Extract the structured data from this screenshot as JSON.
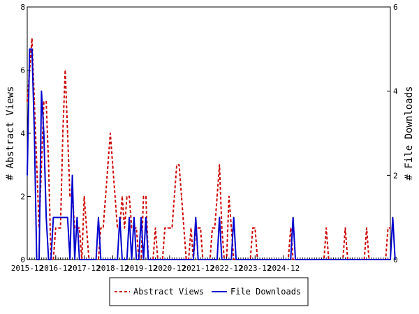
{
  "chart_data": {
    "type": "line",
    "title": "",
    "ylabel_left": "# Abstract Views",
    "ylabel_right": "# File Downloads",
    "ylim_left": [
      0,
      8
    ],
    "ylim_right": [
      0,
      6
    ],
    "yticks_left": [
      "0",
      "2",
      "4",
      "6",
      "8"
    ],
    "yticks_right": [
      "0",
      "2",
      "4",
      "6"
    ],
    "x_tick_labels": [
      "2015-12",
      "2016-12",
      "2017-12",
      "2018-12",
      "2019-12",
      "2020-12",
      "2021-12",
      "2022-12",
      "2023-12",
      "2024-12"
    ],
    "grid": false,
    "legend_position": "bottom",
    "series": [
      {
        "name": "Abstract Views",
        "axis": "left",
        "color": "#cc0000",
        "style": "dashed",
        "values": [
          5,
          6,
          7,
          5,
          3,
          1,
          3,
          5,
          5,
          3,
          0,
          0,
          1,
          1,
          1,
          4,
          6,
          4,
          2,
          2,
          1,
          1,
          1,
          0,
          2,
          1,
          0,
          0,
          0,
          0,
          0,
          1,
          1,
          2,
          3,
          4,
          3,
          2,
          1,
          1,
          2,
          1,
          2,
          2,
          1,
          1,
          1,
          0,
          0,
          2,
          2,
          0,
          0,
          0,
          1,
          0,
          0,
          0,
          1,
          1,
          1,
          1,
          2,
          3,
          3,
          2,
          1,
          0,
          0,
          1,
          0,
          1,
          1,
          1,
          0,
          0,
          0,
          0,
          1,
          1,
          2,
          3,
          1,
          0,
          0,
          2,
          1,
          0,
          0,
          0,
          0,
          0,
          0,
          0,
          0,
          1,
          1,
          0,
          0,
          0,
          0,
          0,
          0,
          0,
          0,
          0,
          0,
          0,
          0,
          0,
          0,
          1,
          0,
          0,
          0,
          0,
          0,
          0,
          0,
          0,
          0,
          0,
          0,
          0,
          0,
          0,
          1,
          0,
          0,
          0,
          0,
          0,
          0,
          0,
          1,
          0,
          0,
          0,
          0,
          0,
          0,
          0,
          0,
          1,
          0,
          0,
          0,
          0,
          0,
          0,
          0,
          0,
          1,
          1
        ]
      },
      {
        "name": "File Downloads",
        "axis": "right",
        "color": "#0000cc",
        "style": "solid",
        "values": [
          2,
          5,
          5,
          3,
          0,
          0,
          4,
          3,
          1,
          0,
          0,
          1,
          1,
          1,
          1,
          1,
          1,
          1,
          0,
          2,
          0,
          1,
          0,
          0,
          0,
          0,
          0,
          0,
          0,
          0,
          1,
          0,
          0,
          0,
          0,
          0,
          0,
          0,
          0,
          1,
          0,
          0,
          0,
          1,
          0,
          1,
          0,
          0,
          1,
          0,
          1,
          0,
          0,
          0,
          0,
          0,
          0,
          0,
          0,
          0,
          0,
          0,
          0,
          0,
          0,
          0,
          0,
          0,
          0,
          0,
          0,
          1,
          0,
          0,
          0,
          0,
          0,
          0,
          0,
          0,
          0,
          1,
          0,
          0,
          0,
          0,
          0,
          1,
          0,
          0,
          0,
          0,
          0,
          0,
          0,
          0,
          0,
          0,
          0,
          0,
          0,
          0,
          0,
          0,
          0,
          0,
          0,
          0,
          0,
          0,
          0,
          0,
          1,
          0,
          0,
          0,
          0,
          0,
          0,
          0,
          0,
          0,
          0,
          0,
          0,
          0,
          0,
          0,
          0,
          0,
          0,
          0,
          0,
          0,
          0,
          0,
          0,
          0,
          0,
          0,
          0,
          0,
          0,
          0,
          0,
          0,
          0,
          0,
          0,
          0,
          0,
          0,
          0,
          0,
          1,
          0
        ]
      }
    ]
  }
}
